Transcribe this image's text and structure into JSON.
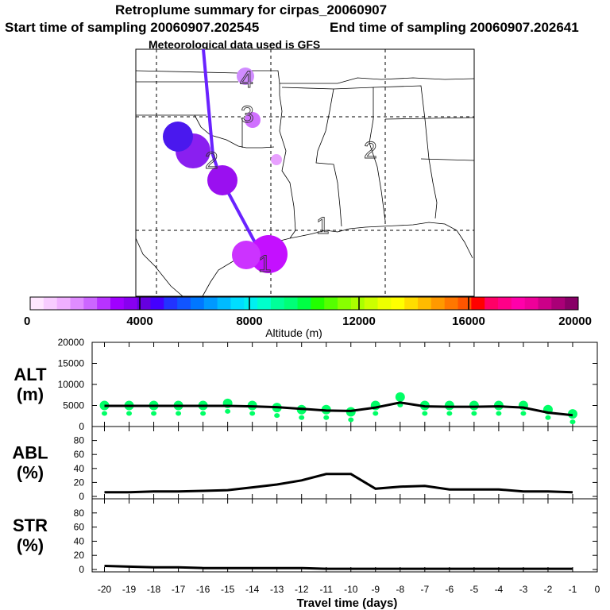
{
  "header": {
    "title": "Retroplume summary for cirpas_20060907",
    "start": "Start time of sampling 20060907.202545",
    "end": "End time of sampling 20060907.202641",
    "met": "Meteorological data used is GFS"
  },
  "map": {
    "day_labels": [
      "4",
      "3",
      "2",
      "2",
      "1",
      "1"
    ]
  },
  "colorbar": {
    "xlabel": "Altitude (m)",
    "min": 0,
    "max": 20000,
    "ticks": [
      0,
      4000,
      8000,
      12000,
      16000,
      20000
    ],
    "colors": [
      "#ffe6ff",
      "#f8ccff",
      "#f0b0ff",
      "#e08cff",
      "#cc66ff",
      "#b833ff",
      "#a000ff",
      "#8800f0",
      "#6600e0",
      "#4400ff",
      "#2233ff",
      "#1155ff",
      "#0077ff",
      "#0099ff",
      "#00bbff",
      "#00ddff",
      "#00f0f0",
      "#00ffcc",
      "#00ff99",
      "#00ff77",
      "#00ff44",
      "#22ff00",
      "#55ff00",
      "#88ff00",
      "#aaff00",
      "#ccff00",
      "#eeff00",
      "#ffff00",
      "#ffdd00",
      "#ffbb00",
      "#ff9900",
      "#ff7700",
      "#ff5500",
      "#ff0000",
      "#ff0066",
      "#ff0088",
      "#ff00aa",
      "#ee0099",
      "#cc0088",
      "#aa0077",
      "#880066"
    ]
  },
  "chart_data": [
    {
      "type": "line",
      "title": "ALT (m)",
      "ylabel": "ALT\n(m)",
      "ylim": [
        0,
        20000
      ],
      "yticks": [
        0,
        5000,
        10000,
        15000,
        20000
      ],
      "x": [
        -20,
        -19,
        -18,
        -17,
        -16,
        -15,
        -14,
        -13,
        -12,
        -11,
        -10,
        -9,
        -8,
        -7,
        -6,
        -5,
        -4,
        -3,
        -2,
        -1
      ],
      "values": [
        4900,
        4900,
        4900,
        4900,
        4900,
        4900,
        4800,
        4600,
        4200,
        3800,
        3700,
        4500,
        5700,
        4800,
        4700,
        4700,
        4800,
        4500,
        3300,
        2700
      ],
      "dots": [
        5000,
        5000,
        5000,
        5000,
        5000,
        5500,
        5000,
        4500,
        4000,
        4000,
        3500,
        5000,
        7000,
        5000,
        5000,
        5000,
        5000,
        5000,
        4000,
        3000
      ],
      "dot_color": "#00ff66"
    },
    {
      "type": "line",
      "title": "ABL (%)",
      "ylabel": "ABL\n(%)",
      "ylim": [
        0,
        100
      ],
      "yticks": [
        0,
        20,
        40,
        60,
        80
      ],
      "x": [
        -20,
        -19,
        -18,
        -17,
        -16,
        -15,
        -14,
        -13,
        -12,
        -11,
        -10,
        -9,
        -8,
        -7,
        -6,
        -5,
        -4,
        -3,
        -2,
        -1
      ],
      "values": [
        6,
        6,
        7,
        7,
        8,
        9,
        13,
        17,
        23,
        32,
        32,
        11,
        14,
        15,
        10,
        10,
        10,
        7,
        7,
        6
      ]
    },
    {
      "type": "line",
      "title": "STR (%)",
      "ylabel": "STR\n(%)",
      "ylim": [
        0,
        100
      ],
      "yticks": [
        0,
        20,
        40,
        60,
        80
      ],
      "x": [
        -20,
        -19,
        -18,
        -17,
        -16,
        -15,
        -14,
        -13,
        -12,
        -11,
        -10,
        -9,
        -8,
        -7,
        -6,
        -5,
        -4,
        -3,
        -2,
        -1
      ],
      "values": [
        5,
        4,
        3,
        3,
        2,
        2,
        2,
        2,
        2,
        1,
        1,
        1,
        1,
        1,
        1,
        1,
        1,
        1,
        1,
        1
      ]
    }
  ],
  "xaxis": {
    "xlabel": "Travel time (days)",
    "ticks": [
      -20,
      -19,
      -18,
      -17,
      -16,
      -15,
      -14,
      -13,
      -12,
      -11,
      -10,
      -9,
      -8,
      -7,
      -6,
      -5,
      -4,
      -3,
      -2,
      -1,
      0
    ]
  }
}
